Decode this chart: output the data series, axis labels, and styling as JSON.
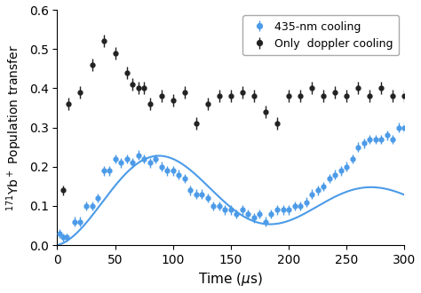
{
  "blue_x": [
    2,
    5,
    8,
    15,
    20,
    25,
    30,
    35,
    40,
    45,
    50,
    55,
    60,
    65,
    70,
    75,
    80,
    85,
    90,
    95,
    100,
    105,
    110,
    115,
    120,
    125,
    130,
    135,
    140,
    145,
    150,
    155,
    160,
    165,
    170,
    175,
    180,
    185,
    190,
    195,
    200,
    205,
    210,
    215,
    220,
    225,
    230,
    235,
    240,
    245,
    250,
    255,
    260,
    265,
    270,
    275,
    280,
    285,
    290,
    295,
    300
  ],
  "blue_y": [
    0.03,
    0.02,
    0.02,
    0.06,
    0.06,
    0.1,
    0.1,
    0.12,
    0.19,
    0.19,
    0.22,
    0.21,
    0.22,
    0.21,
    0.23,
    0.22,
    0.21,
    0.22,
    0.2,
    0.19,
    0.19,
    0.18,
    0.17,
    0.14,
    0.13,
    0.13,
    0.12,
    0.1,
    0.1,
    0.09,
    0.09,
    0.08,
    0.09,
    0.08,
    0.07,
    0.08,
    0.06,
    0.08,
    0.09,
    0.09,
    0.09,
    0.1,
    0.1,
    0.11,
    0.13,
    0.14,
    0.15,
    0.17,
    0.18,
    0.19,
    0.2,
    0.22,
    0.25,
    0.26,
    0.27,
    0.27,
    0.27,
    0.28,
    0.27,
    0.3,
    0.3
  ],
  "blue_yerr": [
    0.012,
    0.01,
    0.01,
    0.012,
    0.012,
    0.012,
    0.012,
    0.012,
    0.012,
    0.012,
    0.012,
    0.012,
    0.012,
    0.012,
    0.012,
    0.012,
    0.012,
    0.012,
    0.012,
    0.012,
    0.012,
    0.012,
    0.012,
    0.012,
    0.012,
    0.012,
    0.012,
    0.012,
    0.012,
    0.012,
    0.012,
    0.012,
    0.012,
    0.012,
    0.012,
    0.012,
    0.012,
    0.012,
    0.012,
    0.012,
    0.012,
    0.012,
    0.012,
    0.012,
    0.012,
    0.012,
    0.012,
    0.012,
    0.012,
    0.012,
    0.012,
    0.012,
    0.012,
    0.012,
    0.012,
    0.012,
    0.012,
    0.012,
    0.012,
    0.012,
    0.014
  ],
  "black_x": [
    5,
    10,
    20,
    30,
    40,
    50,
    60,
    65,
    70,
    75,
    80,
    90,
    100,
    110,
    120,
    130,
    140,
    150,
    160,
    170,
    180,
    190,
    200,
    210,
    220,
    230,
    240,
    250,
    260,
    270,
    280,
    290,
    300
  ],
  "black_y": [
    0.14,
    0.36,
    0.39,
    0.46,
    0.52,
    0.49,
    0.44,
    0.41,
    0.4,
    0.4,
    0.36,
    0.38,
    0.37,
    0.39,
    0.31,
    0.36,
    0.38,
    0.38,
    0.39,
    0.38,
    0.34,
    0.31,
    0.38,
    0.38,
    0.4,
    0.38,
    0.39,
    0.38,
    0.4,
    0.38,
    0.4,
    0.38,
    0.38
  ],
  "black_yerr": [
    0.012,
    0.016,
    0.016,
    0.016,
    0.016,
    0.016,
    0.016,
    0.016,
    0.016,
    0.016,
    0.016,
    0.016,
    0.016,
    0.016,
    0.016,
    0.016,
    0.016,
    0.016,
    0.016,
    0.016,
    0.016,
    0.016,
    0.016,
    0.016,
    0.016,
    0.016,
    0.016,
    0.016,
    0.016,
    0.016,
    0.016,
    0.016,
    0.016
  ],
  "blue_color": "#4C9BE8",
  "black_color": "#222222",
  "fit_color": "#4C9BE8",
  "xlabel": "Time ($\\mu$s)",
  "ylabel": "$^{171}$Yb$^+$ Population transfer",
  "xlim": [
    0,
    300
  ],
  "ylim": [
    0.0,
    0.6
  ],
  "yticks": [
    0.0,
    0.1,
    0.2,
    0.3,
    0.4,
    0.5,
    0.6
  ],
  "xticks": [
    0,
    50,
    100,
    150,
    200,
    250,
    300
  ],
  "legend_label_blue": "435-nm cooling",
  "legend_label_black": "Only  doppler cooling",
  "fit_A": 0.115,
  "fit_B": 0.075,
  "fit_omega": 0.02887,
  "fit_phi": 1.5708,
  "fit_decay": 0.0032,
  "fit_C": 0.008,
  "figsize": [
    4.74,
    3.3
  ],
  "dpi": 100
}
